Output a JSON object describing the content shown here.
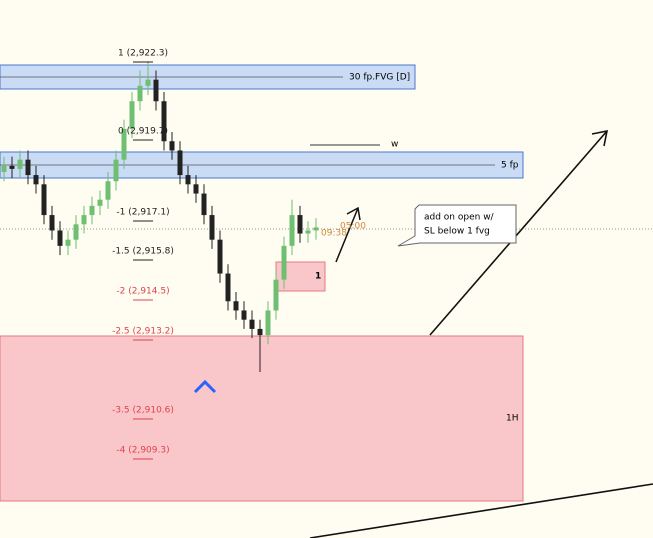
{
  "zones": [
    {
      "label": "30 fp.FVG [D]"
    },
    {
      "label": "5 fp"
    },
    {
      "label": "1H"
    },
    {
      "label": "1"
    }
  ],
  "fib_levels": [
    "1 (2,922.3)",
    "0 (2,919.7)",
    "-1 (2,917.1)",
    "-1.5 (2,915.8)",
    "-2 (2,914.5)",
    "-2.5 (2,913.2)",
    "-3.5 (2,910.6)",
    "-4 (2,909.3)"
  ],
  "annotations": {
    "note": [
      "add on open w/",
      "SL below 1 fvg"
    ],
    "marker": "w",
    "time_a": "05:00",
    "time_b": "09:38"
  },
  "candles": {
    "open": [
      2918.4,
      2918.6,
      2918.5,
      2918.8,
      2918.3,
      2918.0,
      2917.0,
      2916.5,
      2916.0,
      2916.2,
      2916.7,
      2917.0,
      2917.3,
      2917.5,
      2918.1,
      2918.8,
      2919.8,
      2920.7,
      2921.2,
      2921.4,
      2920.7,
      2919.4,
      2919.1,
      2918.3,
      2918.0,
      2917.7,
      2917.0,
      2916.2,
      2915.1,
      2914.2,
      2913.9,
      2913.6,
      2913.3,
      2913.1,
      2913.9,
      2914.9,
      2916.0,
      2917.0,
      2916.4,
      2916.5
    ],
    "high": [
      2918.9,
      2918.9,
      2919.1,
      2919.1,
      2918.6,
      2918.3,
      2917.3,
      2916.8,
      2916.5,
      2917.0,
      2917.3,
      2917.6,
      2917.8,
      2918.4,
      2919.1,
      2920.1,
      2921.0,
      2921.7,
      2922.0,
      2921.7,
      2921.0,
      2919.7,
      2919.4,
      2918.6,
      2918.3,
      2918.0,
      2917.3,
      2916.5,
      2915.4,
      2914.5,
      2914.2,
      2913.9,
      2913.6,
      2914.2,
      2915.2,
      2916.3,
      2917.5,
      2917.3,
      2916.8,
      2916.9
    ],
    "low": [
      2918.1,
      2918.2,
      2918.2,
      2918.0,
      2917.7,
      2916.7,
      2916.2,
      2915.7,
      2915.7,
      2915.9,
      2916.4,
      2916.7,
      2917.0,
      2917.2,
      2917.8,
      2918.5,
      2919.5,
      2920.4,
      2920.9,
      2920.4,
      2919.1,
      2918.8,
      2918.0,
      2917.7,
      2917.4,
      2916.7,
      2915.9,
      2914.8,
      2913.9,
      2913.6,
      2913.3,
      2913.0,
      2911.9,
      2912.8,
      2913.6,
      2914.6,
      2915.7,
      2916.1,
      2916.1,
      2916.2
    ],
    "close": [
      2918.6,
      2918.5,
      2918.8,
      2918.3,
      2918.0,
      2917.0,
      2916.5,
      2916.0,
      2916.2,
      2916.7,
      2917.0,
      2917.3,
      2917.5,
      2918.1,
      2918.8,
      2919.8,
      2920.7,
      2921.2,
      2921.4,
      2920.7,
      2919.4,
      2919.1,
      2918.3,
      2918.0,
      2917.7,
      2917.0,
      2916.2,
      2915.1,
      2914.2,
      2913.9,
      2913.6,
      2913.3,
      2913.1,
      2913.9,
      2914.9,
      2916.0,
      2917.0,
      2916.4,
      2916.5,
      2916.6
    ]
  }
}
